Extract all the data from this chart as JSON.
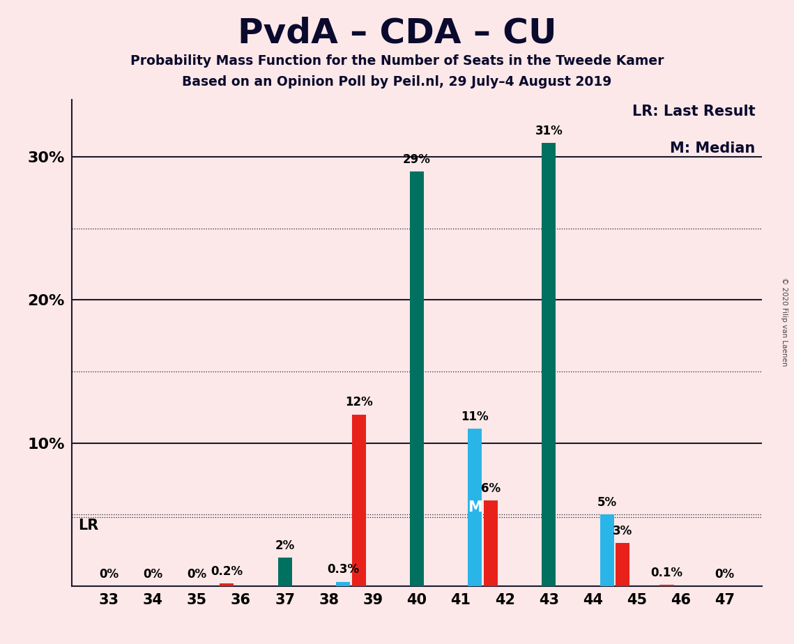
{
  "title": "PvdA – CDA – CU",
  "subtitle1": "Probability Mass Function for the Number of Seats in the Tweede Kamer",
  "subtitle2": "Based on an Opinion Poll by Peil.nl, 29 July–4 August 2019",
  "copyright": "© 2020 Filip van Laenen",
  "seats": [
    33,
    34,
    35,
    36,
    37,
    38,
    39,
    40,
    41,
    42,
    43,
    44,
    45,
    46,
    47
  ],
  "red_values": [
    0.0,
    0.0,
    0.0,
    0.2,
    0.0,
    0.0,
    12.0,
    0.0,
    0.0,
    6.0,
    0.0,
    0.0,
    3.0,
    0.1,
    0.0
  ],
  "green_values": [
    0.0,
    0.0,
    0.0,
    0.0,
    2.0,
    0.0,
    0.0,
    29.0,
    0.0,
    0.0,
    31.0,
    0.0,
    0.0,
    0.0,
    0.0
  ],
  "blue_values": [
    0.0,
    0.0,
    0.0,
    0.0,
    0.0,
    0.3,
    0.0,
    0.0,
    11.0,
    0.0,
    0.0,
    5.0,
    0.0,
    0.0,
    0.0
  ],
  "red_color": "#e8221a",
  "green_color": "#007060",
  "blue_color": "#29b5e8",
  "bg_color": "#fce8e8",
  "ylim_max": 34,
  "solid_gridlines": [
    10,
    20,
    30
  ],
  "dotted_gridlines": [
    5,
    15,
    25
  ],
  "lr_dotted_line": 4.8,
  "bar_width": 0.32,
  "zero_label_seats": [
    33,
    34,
    35,
    47
  ],
  "median_seat": 41,
  "lr_seat": 36,
  "legend_lr": "LR: Last Result",
  "legend_m": "M: Median"
}
